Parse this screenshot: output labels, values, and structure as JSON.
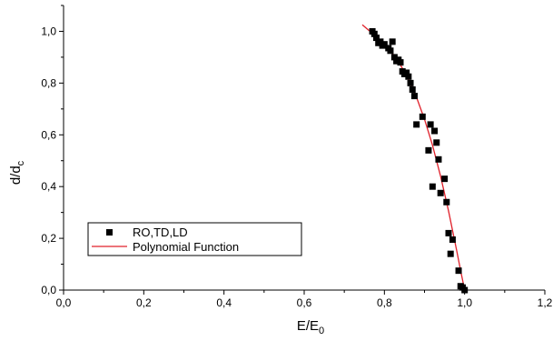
{
  "chart_data": {
    "type": "scatter",
    "xlabel": {
      "main": "E/E",
      "sub": "0"
    },
    "ylabel": {
      "main": "d/d",
      "sub": "c"
    },
    "xlim": [
      0.0,
      1.2
    ],
    "ylim": [
      0.0,
      1.1
    ],
    "x_ticks": [
      0.0,
      0.2,
      0.4,
      0.6,
      0.8,
      1.0,
      1.2
    ],
    "x_tick_labels": [
      "0,0",
      "0,2",
      "0,4",
      "0,6",
      "0,8",
      "1,0",
      "1,2"
    ],
    "y_ticks": [
      0.0,
      0.2,
      0.4,
      0.6,
      0.8,
      1.0
    ],
    "y_tick_labels": [
      "0,0",
      "0,2",
      "0,4",
      "0,6",
      "0,8",
      "1,0"
    ],
    "grid": false,
    "legend_position": "bottom-left",
    "series": [
      {
        "name": "RO,TD,LD",
        "kind": "scatter",
        "marker": "square",
        "color": "#000000",
        "points": [
          [
            0.77,
            1.0
          ],
          [
            0.775,
            0.99
          ],
          [
            0.78,
            0.975
          ],
          [
            0.785,
            0.955
          ],
          [
            0.79,
            0.96
          ],
          [
            0.795,
            0.945
          ],
          [
            0.8,
            0.95
          ],
          [
            0.81,
            0.935
          ],
          [
            0.815,
            0.925
          ],
          [
            0.82,
            0.96
          ],
          [
            0.825,
            0.9
          ],
          [
            0.83,
            0.885
          ],
          [
            0.835,
            0.89
          ],
          [
            0.84,
            0.88
          ],
          [
            0.845,
            0.845
          ],
          [
            0.85,
            0.835
          ],
          [
            0.855,
            0.84
          ],
          [
            0.86,
            0.825
          ],
          [
            0.865,
            0.8
          ],
          [
            0.87,
            0.775
          ],
          [
            0.875,
            0.75
          ],
          [
            0.88,
            0.64
          ],
          [
            0.895,
            0.67
          ],
          [
            0.91,
            0.54
          ],
          [
            0.915,
            0.64
          ],
          [
            0.92,
            0.4
          ],
          [
            0.925,
            0.615
          ],
          [
            0.93,
            0.57
          ],
          [
            0.935,
            0.505
          ],
          [
            0.94,
            0.375
          ],
          [
            0.95,
            0.43
          ],
          [
            0.955,
            0.34
          ],
          [
            0.96,
            0.22
          ],
          [
            0.965,
            0.14
          ],
          [
            0.97,
            0.195
          ],
          [
            0.985,
            0.075
          ],
          [
            0.99,
            0.015
          ],
          [
            0.995,
            0.01
          ],
          [
            1.0,
            0.0
          ]
        ]
      },
      {
        "name": "Polynomial Function",
        "kind": "line",
        "color": "#e0202a",
        "points": [
          [
            0.745,
            1.025
          ],
          [
            0.76,
            1.005
          ],
          [
            0.78,
            0.98
          ],
          [
            0.8,
            0.95
          ],
          [
            0.82,
            0.915
          ],
          [
            0.84,
            0.87
          ],
          [
            0.86,
            0.815
          ],
          [
            0.88,
            0.745
          ],
          [
            0.9,
            0.66
          ],
          [
            0.92,
            0.56
          ],
          [
            0.94,
            0.44
          ],
          [
            0.96,
            0.305
          ],
          [
            0.98,
            0.155
          ],
          [
            0.99,
            0.075
          ],
          [
            1.0,
            0.0
          ]
        ]
      }
    ]
  }
}
